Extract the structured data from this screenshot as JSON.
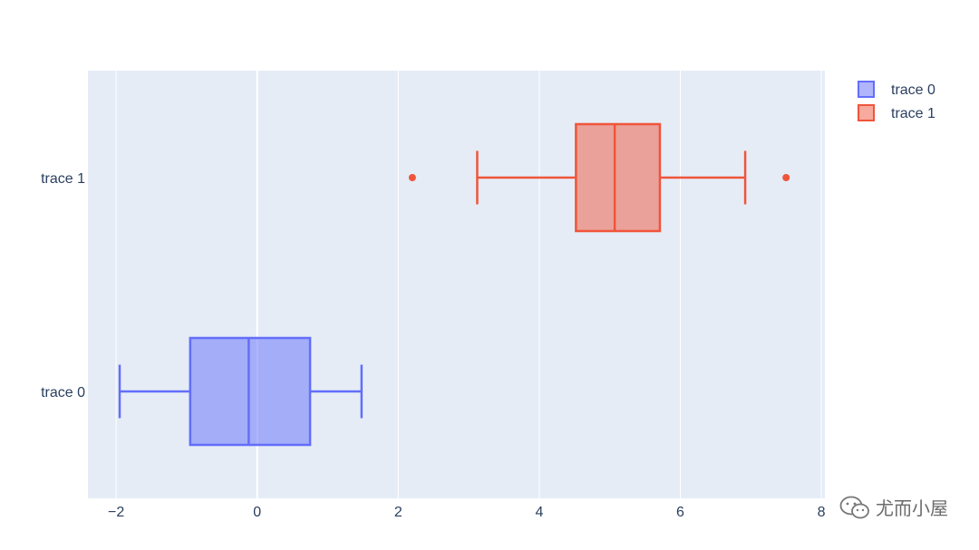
{
  "chart_data": {
    "type": "box",
    "orientation": "horizontal",
    "xlim": [
      -2.4,
      8.05
    ],
    "x_ticks": [
      -2,
      0,
      2,
      4,
      6,
      8
    ],
    "x_tick_labels": [
      "−2",
      "0",
      "2",
      "4",
      "6",
      "8"
    ],
    "grid": true,
    "legend_position": "top-right",
    "series": [
      {
        "name": "trace 0",
        "color": "#636efa",
        "min": -1.95,
        "q1": -0.95,
        "median": -0.12,
        "q3": 0.75,
        "max": 1.48,
        "outliers": []
      },
      {
        "name": "trace 1",
        "color": "#ef553b",
        "min": 3.12,
        "q1": 4.52,
        "median": 5.07,
        "q3": 5.71,
        "max": 6.92,
        "outliers": [
          2.2,
          7.5
        ]
      }
    ]
  },
  "watermark": {
    "text": "尤而小屋",
    "icon": "wechat-icon"
  }
}
